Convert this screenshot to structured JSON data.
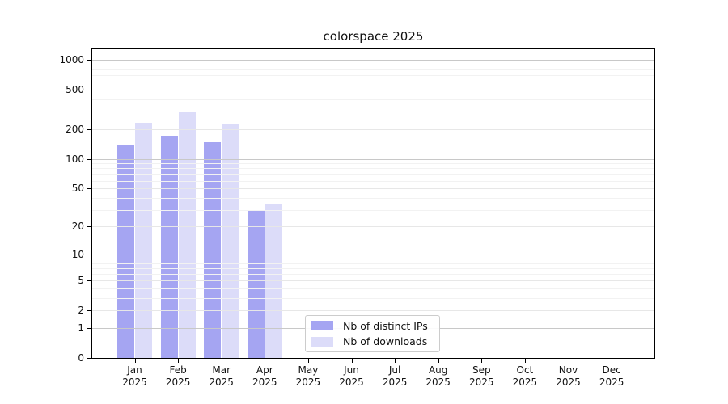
{
  "chart_data": {
    "type": "bar",
    "title": "colorspace 2025",
    "categories": [
      "Jan 2025",
      "Feb 2025",
      "Mar 2025",
      "Apr 2025",
      "May 2025",
      "Jun 2025",
      "Jul 2025",
      "Aug 2025",
      "Sep 2025",
      "Oct 2025",
      "Nov 2025",
      "Dec 2025"
    ],
    "series": [
      {
        "name": "Nb of distinct IPs",
        "color": "#a5a5f2",
        "values": [
          138,
          173,
          147,
          29,
          0,
          0,
          0,
          0,
          0,
          0,
          0,
          0
        ]
      },
      {
        "name": "Nb of downloads",
        "color": "#dcdcf9",
        "values": [
          234,
          296,
          226,
          35,
          0,
          0,
          0,
          0,
          0,
          0,
          0,
          0
        ]
      }
    ],
    "xlabel": "",
    "ylabel": "",
    "yscale": "log1p",
    "yticks": [
      0,
      1,
      2,
      5,
      10,
      20,
      50,
      100,
      200,
      500,
      1000
    ],
    "ylim": [
      0,
      1280
    ],
    "grid": "horizontal major and minor gridlines drawn over bars",
    "legend_position": "inside plot, bottom center"
  },
  "colors": {
    "decade_gridline": "#c8c8c8",
    "labeled_gridline": "#e7e7e7",
    "minor_gridline": "#f2f2f2",
    "spine": "#000000",
    "background": "#ffffff"
  }
}
